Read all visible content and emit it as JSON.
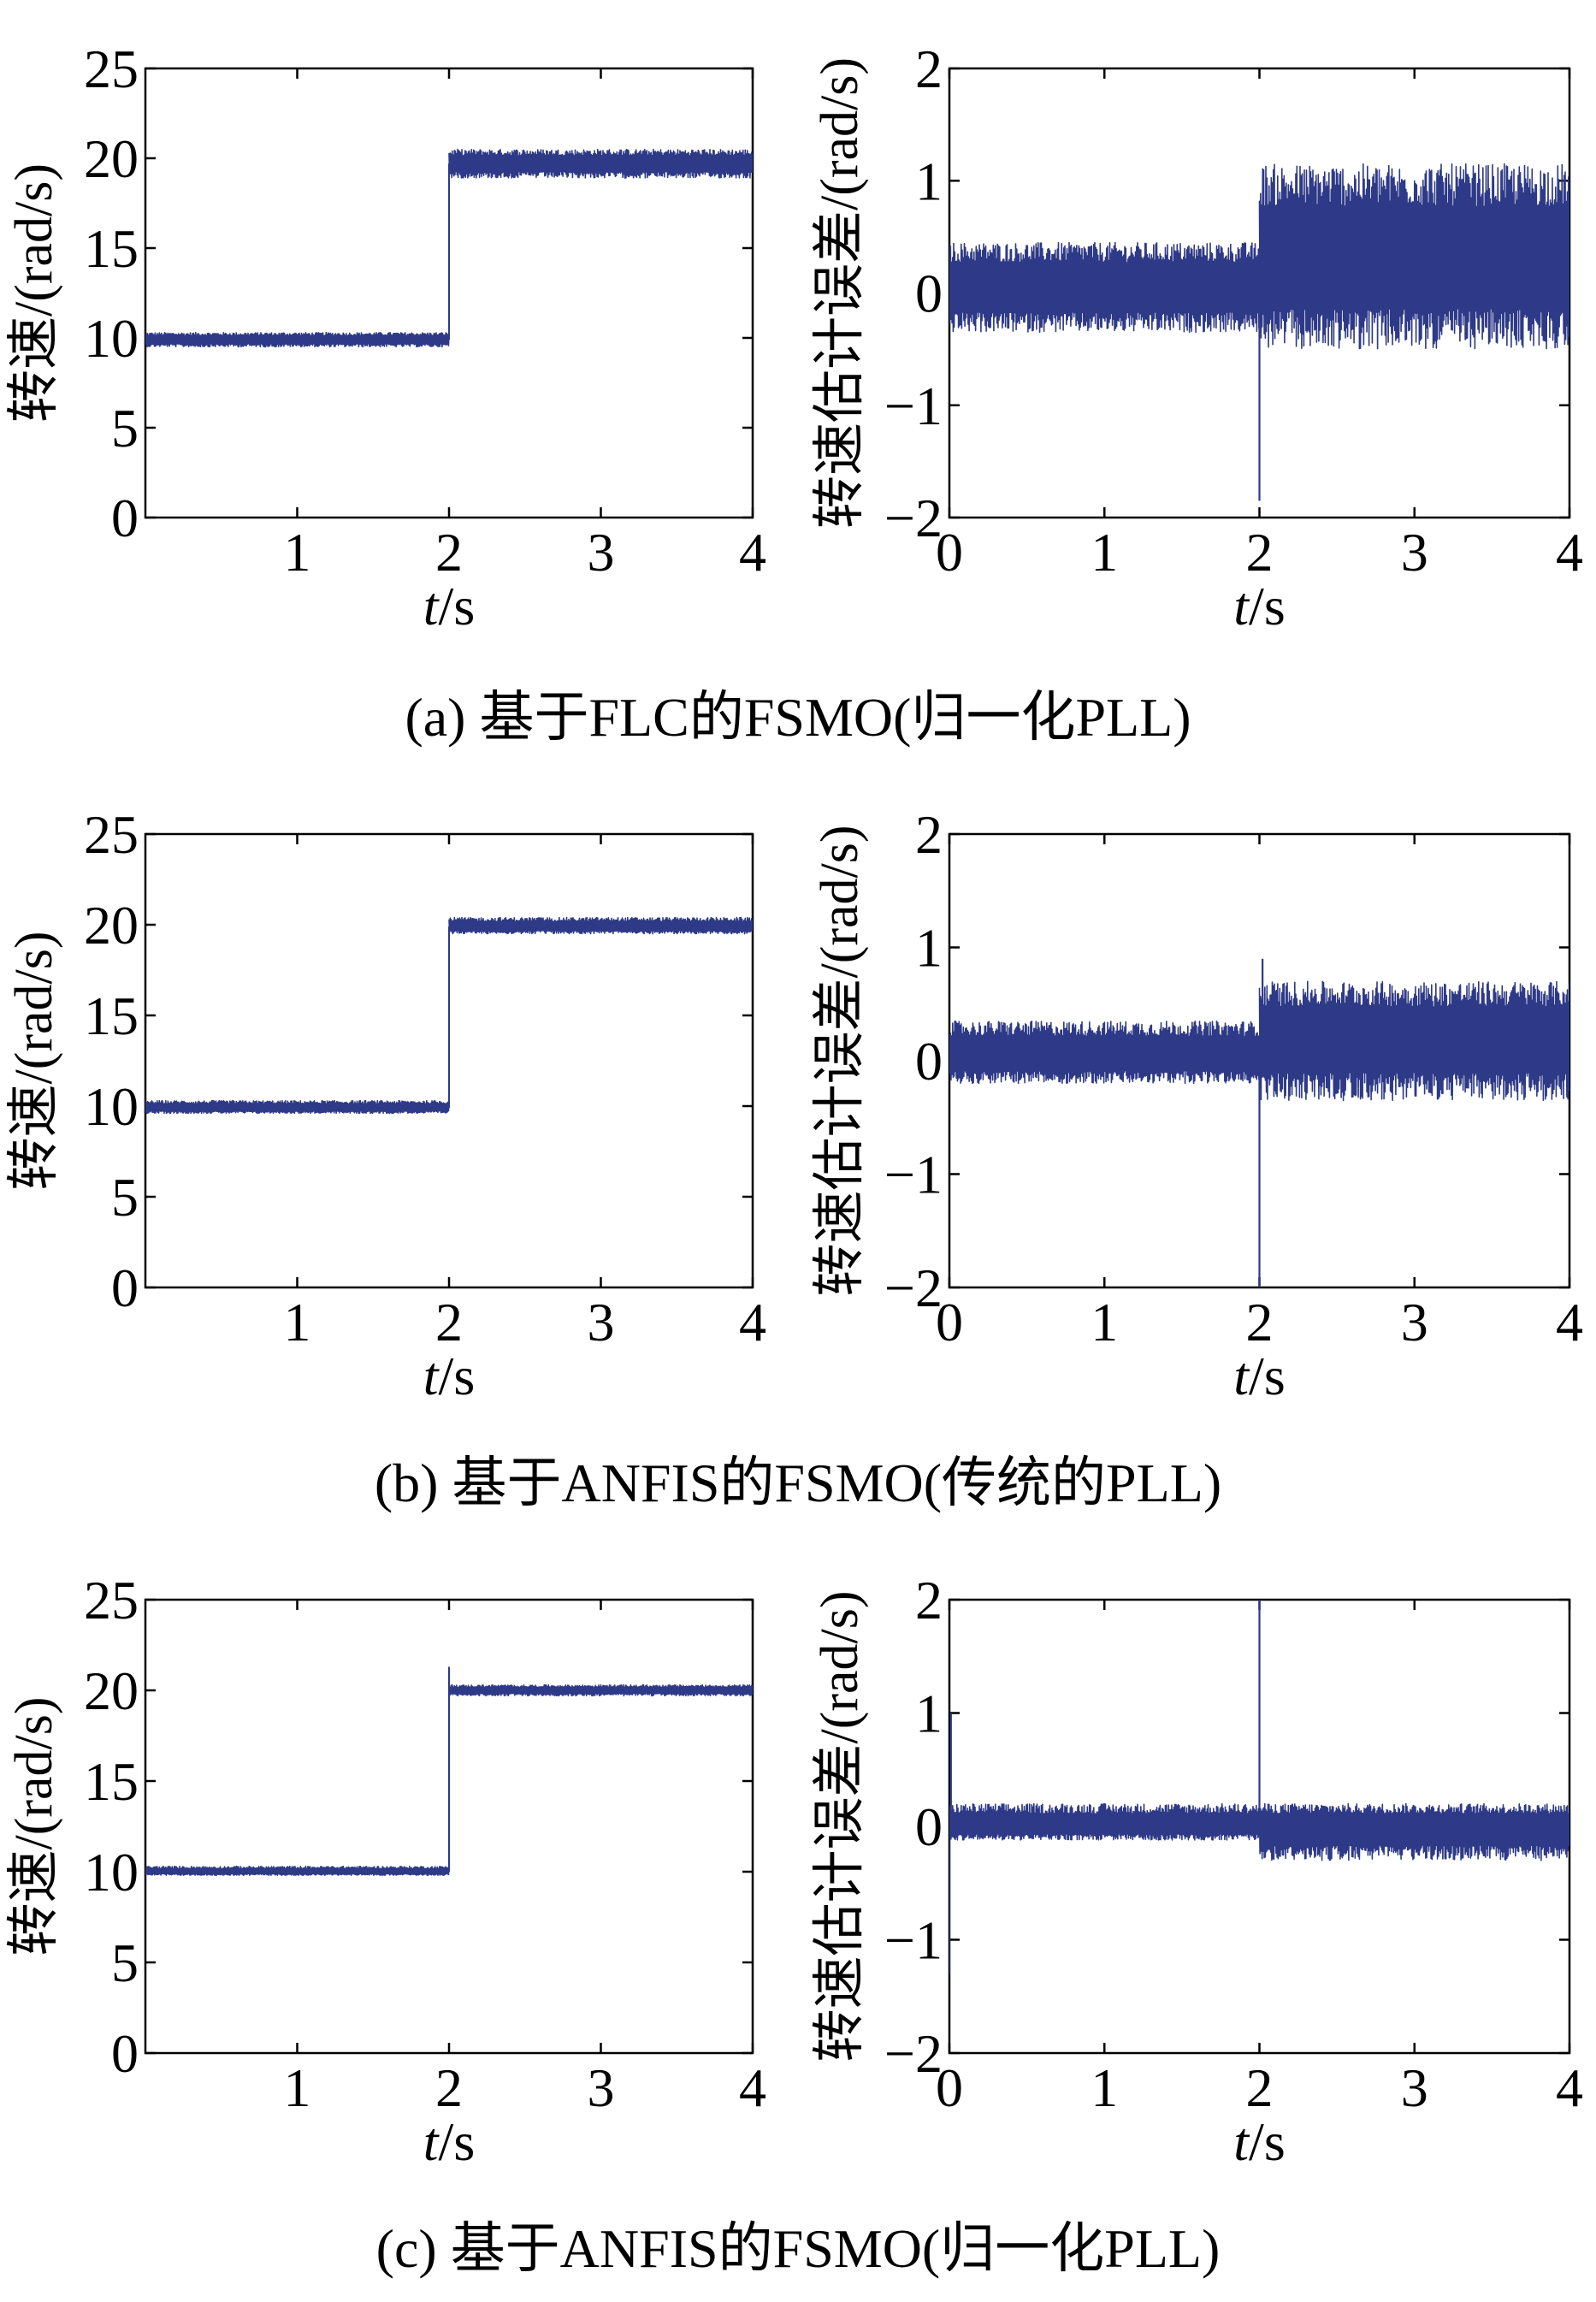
{
  "line_color": "#2e3a87",
  "chart_data": [
    {
      "type": "line",
      "panel": "a-left",
      "ylabel": "转速/(rad/s)",
      "xlabel_italic": "t",
      "xlabel_rest": "/s",
      "xlim": [
        0,
        4
      ],
      "ylim": [
        0,
        25
      ],
      "xticks": [
        1,
        2,
        3,
        4
      ],
      "yticks": [
        0,
        5,
        10,
        15,
        20,
        25
      ],
      "series": [
        {
          "segments": [
            {
              "t0": 0,
              "t1": 2,
              "mean": 9.9,
              "lo": 9.5,
              "hi": 10.3
            },
            {
              "t0": 2,
              "t1": 4,
              "mean": 19.7,
              "lo": 18.9,
              "hi": 20.5
            }
          ]
        }
      ]
    },
    {
      "type": "line",
      "panel": "a-right",
      "ylabel": "转速估计误差/(rad/s)",
      "xlabel_italic": "t",
      "xlabel_rest": "/s",
      "xlim": [
        0,
        4
      ],
      "ylim": [
        -2,
        2
      ],
      "xticks": [
        0,
        1,
        2,
        3,
        4
      ],
      "yticks": [
        -2,
        -1,
        0,
        1,
        2
      ],
      "series": [
        {
          "segments": [
            {
              "t0": 0,
              "t1": 2,
              "mean": 0.05,
              "lo": -0.35,
              "hi": 0.45
            },
            {
              "t0": 2,
              "t1": 4,
              "mean": 0.3,
              "lo": -0.5,
              "hi": 1.15
            }
          ],
          "spikes": [
            {
              "t": 2,
              "value": -1.85
            }
          ]
        }
      ]
    },
    {
      "type": "line",
      "panel": "b-left",
      "ylabel": "转速/(rad/s)",
      "xlabel_italic": "t",
      "xlabel_rest": "/s",
      "xlim": [
        0,
        4
      ],
      "ylim": [
        0,
        25
      ],
      "xticks": [
        1,
        2,
        3,
        4
      ],
      "yticks": [
        0,
        5,
        10,
        15,
        20,
        25
      ],
      "series": [
        {
          "segments": [
            {
              "t0": 0,
              "t1": 2,
              "mean": 9.9,
              "lo": 9.6,
              "hi": 10.3
            },
            {
              "t0": 2,
              "t1": 4,
              "mean": 19.9,
              "lo": 19.5,
              "hi": 20.4
            }
          ]
        }
      ]
    },
    {
      "type": "line",
      "panel": "b-right",
      "ylabel": "转速估计误差/(rad/s)",
      "xlabel_italic": "t",
      "xlabel_rest": "/s",
      "xlim": [
        0,
        4
      ],
      "ylim": [
        -2,
        2
      ],
      "xticks": [
        0,
        1,
        2,
        3,
        4
      ],
      "yticks": [
        -2,
        -1,
        0,
        1,
        2
      ],
      "series": [
        {
          "segments": [
            {
              "t0": 0,
              "t1": 2,
              "mean": 0.05,
              "lo": -0.2,
              "hi": 0.35
            },
            {
              "t0": 2,
              "t1": 4,
              "mean": 0.2,
              "lo": -0.35,
              "hi": 0.7
            }
          ],
          "spikes": [
            {
              "t": 2,
              "value": -2.0
            },
            {
              "t": 2.02,
              "value": 0.9
            }
          ]
        }
      ]
    },
    {
      "type": "line",
      "panel": "c-left",
      "ylabel": "转速/(rad/s)",
      "xlabel_italic": "t",
      "xlabel_rest": "/s",
      "xlim": [
        0,
        4
      ],
      "ylim": [
        0,
        25
      ],
      "xticks": [
        1,
        2,
        3,
        4
      ],
      "yticks": [
        0,
        5,
        10,
        15,
        20,
        25
      ],
      "series": [
        {
          "segments": [
            {
              "t0": 0,
              "t1": 2,
              "mean": 10.0,
              "lo": 9.8,
              "hi": 10.3
            },
            {
              "t0": 2,
              "t1": 4,
              "mean": 20.0,
              "lo": 19.7,
              "hi": 20.3
            }
          ],
          "spikes": [
            {
              "t": 2,
              "value": 21.3
            }
          ]
        }
      ]
    },
    {
      "type": "line",
      "panel": "c-right",
      "ylabel": "转速估计误差/(rad/s)",
      "xlabel_italic": "t",
      "xlabel_rest": "/s",
      "xlim": [
        0,
        4
      ],
      "ylim": [
        -2,
        2
      ],
      "xticks": [
        0,
        1,
        2,
        3,
        4
      ],
      "yticks": [
        -2,
        -1,
        0,
        1,
        2
      ],
      "series": [
        {
          "segments": [
            {
              "t0": 0,
              "t1": 2,
              "mean": 0.0,
              "lo": -0.12,
              "hi": 0.2
            },
            {
              "t0": 2,
              "t1": 4,
              "mean": 0.0,
              "lo": -0.3,
              "hi": 0.2
            }
          ],
          "spikes": [
            {
              "t": 0,
              "value": -1.3
            },
            {
              "t": 0.01,
              "value": 1.0
            },
            {
              "t": 2,
              "value": 2.0
            }
          ]
        }
      ]
    }
  ],
  "captions": [
    "(a) 基于FLC的FSMO(归一化PLL)",
    "(b) 基于ANFIS的FSMO(传统的PLL)",
    "(c) 基于ANFIS的FSMO(归一化PLL)"
  ]
}
